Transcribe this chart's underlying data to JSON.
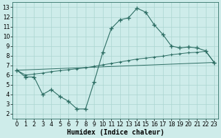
{
  "xlabel": "Humidex (Indice chaleur)",
  "background_color": "#ceecea",
  "line_color": "#2a6b61",
  "xlim": [
    -0.5,
    23.5
  ],
  "ylim": [
    1.5,
    13.5
  ],
  "xticks": [
    0,
    1,
    2,
    3,
    4,
    5,
    6,
    7,
    8,
    9,
    10,
    11,
    12,
    13,
    14,
    15,
    16,
    17,
    18,
    19,
    20,
    21,
    22,
    23
  ],
  "yticks": [
    2,
    3,
    4,
    5,
    6,
    7,
    8,
    9,
    10,
    11,
    12,
    13
  ],
  "series1_x": [
    0,
    1,
    2,
    3,
    4,
    5,
    6,
    7,
    8,
    9,
    10,
    11,
    12,
    13,
    14,
    15,
    16,
    17,
    18,
    19,
    20,
    21,
    22,
    23
  ],
  "series1_y": [
    6.5,
    5.8,
    5.8,
    4.0,
    4.5,
    3.8,
    3.3,
    2.5,
    2.5,
    5.3,
    8.3,
    10.8,
    11.7,
    11.9,
    12.9,
    12.5,
    11.2,
    10.2,
    9.0,
    8.8,
    8.9,
    8.8,
    8.5,
    7.3
  ],
  "series2_x": [
    0,
    1,
    2,
    3,
    4,
    5,
    6,
    7,
    8,
    9,
    10,
    11,
    12,
    13,
    14,
    15,
    16,
    17,
    18,
    19,
    20,
    21,
    22,
    23
  ],
  "series2_y": [
    6.5,
    6.0,
    6.1,
    6.2,
    6.35,
    6.45,
    6.55,
    6.65,
    6.75,
    6.9,
    7.05,
    7.2,
    7.35,
    7.5,
    7.65,
    7.75,
    7.85,
    7.95,
    8.1,
    8.2,
    8.3,
    8.35,
    8.45,
    7.3
  ],
  "series3_x": [
    0,
    23
  ],
  "series3_y": [
    6.5,
    7.3
  ],
  "grid_color": "#aad4d0",
  "xlabel_fontsize": 7,
  "tick_fontsize": 6
}
